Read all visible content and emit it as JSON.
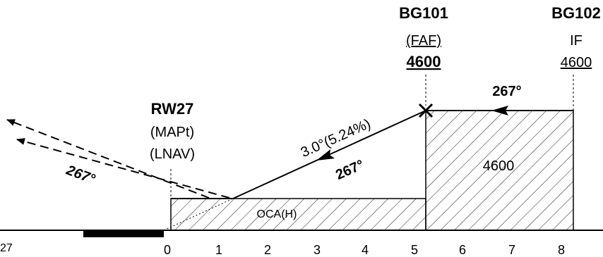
{
  "waypoints": {
    "rw27": {
      "name": "RW27",
      "role1": "(MAPt)",
      "role2": "(LNAV)"
    },
    "bg101": {
      "name": "BG101",
      "role": "(FAF)",
      "altitude": "4600"
    },
    "bg102": {
      "name": "BG102",
      "role": "IF",
      "altitude": "4600"
    }
  },
  "segments": {
    "intermediate_course": "267°",
    "final_course": "267°",
    "missed_course": "267°",
    "glide_path": "3.0°(5.24%)"
  },
  "areas": {
    "intermediate_alt": "4600",
    "oca": "OCA(H)"
  },
  "axis": {
    "ticks": [
      "0",
      "1",
      "2",
      "3",
      "4",
      "5",
      "6",
      "7",
      "8"
    ],
    "runway_label": "27"
  },
  "colors": {
    "ink": "#000000",
    "background": "#ffffff"
  }
}
